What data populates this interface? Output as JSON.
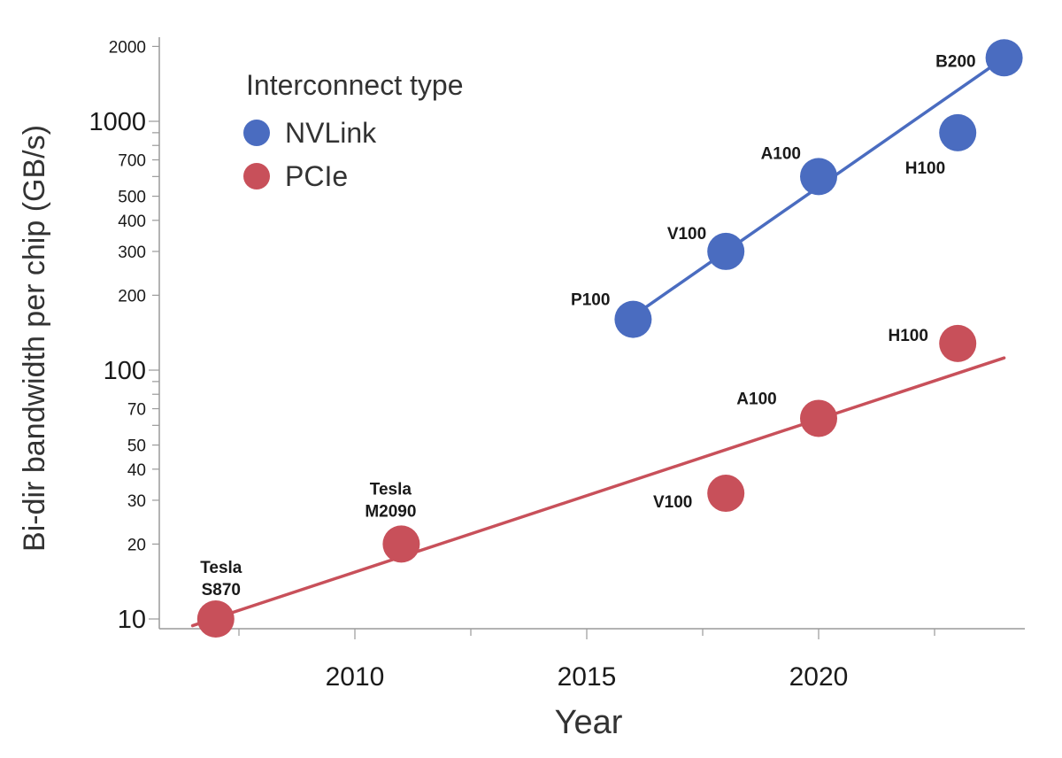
{
  "chart_data": {
    "type": "scatter",
    "title": "",
    "xlabel": "Year",
    "ylabel": "Bi-dir bandwidth per chip (GB/s)",
    "yscale": "log",
    "xlim": [
      2006.5,
      2024.6
    ],
    "ylim": [
      9,
      2400
    ],
    "x_ticks": [
      2010,
      2015,
      2020
    ],
    "x_tick_labels": [
      "2010",
      "2015",
      "2020"
    ],
    "y_ticks_major": [
      10,
      100,
      1000
    ],
    "y_ticks_minor": [
      20,
      30,
      40,
      50,
      70,
      200,
      300,
      400,
      500,
      700,
      2000
    ],
    "y_tick_labels": {
      "10": "10",
      "20": "20",
      "30": "30",
      "40": "40",
      "50": "50",
      "70": "70",
      "100": "100",
      "200": "200",
      "300": "300",
      "400": "400",
      "500": "500",
      "700": "700",
      "1000": "1000",
      "2000": "2000"
    },
    "grid": false,
    "legend": {
      "title": "Interconnect type",
      "position": "top-left",
      "entries": [
        "NVLink",
        "PCIe"
      ]
    },
    "series": [
      {
        "name": "NVLink",
        "color": "#4a6cc0",
        "points": [
          {
            "x": 2016,
            "y": 160,
            "label": "P100"
          },
          {
            "x": 2018,
            "y": 300,
            "label": "V100"
          },
          {
            "x": 2020,
            "y": 600,
            "label": "A100"
          },
          {
            "x": 2023,
            "y": 900,
            "label": "H100"
          },
          {
            "x": 2024,
            "y": 1800,
            "label": "B200"
          }
        ],
        "trend": {
          "x": [
            2016,
            2024
          ],
          "y": [
            165,
            1800
          ]
        }
      },
      {
        "name": "PCIe",
        "color": "#c8505a",
        "points": [
          {
            "x": 2007,
            "y": 10,
            "label_lines": [
              "Tesla",
              "S870"
            ]
          },
          {
            "x": 2011,
            "y": 20,
            "label_lines": [
              "Tesla",
              "M2090"
            ]
          },
          {
            "x": 2018,
            "y": 32,
            "label": "V100"
          },
          {
            "x": 2020,
            "y": 64,
            "label": "A100"
          },
          {
            "x": 2023,
            "y": 128,
            "label": "H100"
          }
        ],
        "trend": {
          "x": [
            2006.5,
            2024
          ],
          "y": [
            9.4,
            112
          ]
        }
      }
    ]
  }
}
